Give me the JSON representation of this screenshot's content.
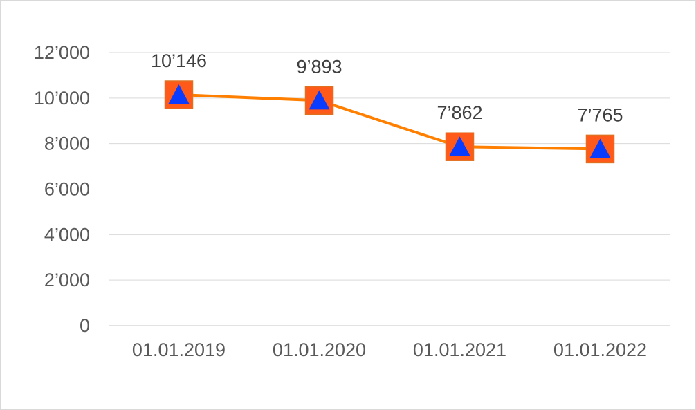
{
  "chart_data": {
    "type": "line",
    "categories": [
      "01.01.2019",
      "01.01.2020",
      "01.01.2021",
      "01.01.2022"
    ],
    "series": [
      {
        "values": [
          10146,
          9893,
          7862,
          7765
        ],
        "labels": [
          "10’146",
          "9’893",
          "7’862",
          "7’765"
        ]
      }
    ],
    "ylim": [
      0,
      12000
    ],
    "yticks": [
      0,
      2000,
      4000,
      6000,
      8000,
      10000,
      12000
    ],
    "ytick_labels": [
      "0",
      "2’000",
      "4’000",
      "6’000",
      "8’000",
      "10’000",
      "12’000"
    ],
    "grid": true,
    "legend": "none",
    "colors": {
      "line": "#ff8000",
      "marker_square": "#ff5a1a",
      "marker_triangle": "#0a3cff",
      "grid": "#d9d9d9",
      "axis": "#d9d9d9"
    },
    "marker_icon": "triangle-in-square-icon"
  }
}
